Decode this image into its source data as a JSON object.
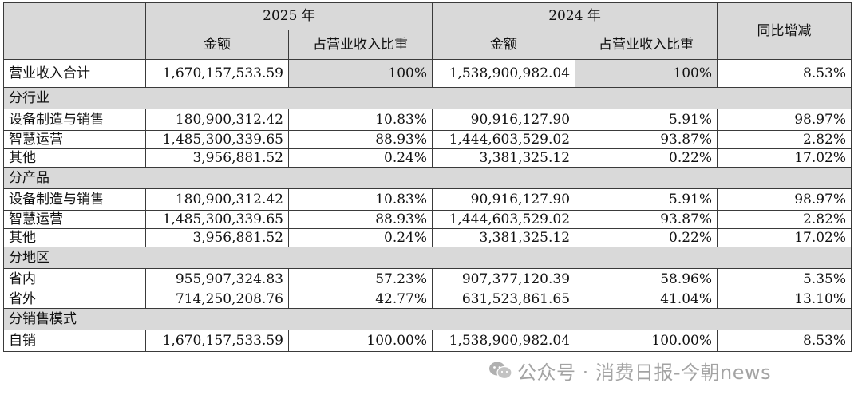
{
  "header": {
    "year_current": "2025 年",
    "year_previous": "2024 年",
    "yoy": "同比增减",
    "amount": "金额",
    "share": "占营业收入比重"
  },
  "total": {
    "label": "营业收入合计",
    "amt_2025": "1,670,157,533.59",
    "pct_2025": "100%",
    "amt_2024": "1,538,900,982.04",
    "pct_2024": "100%",
    "yoy": "8.53%"
  },
  "sections": [
    {
      "title": "分行业",
      "rows": [
        {
          "label": "设备制造与销售",
          "amt_2025": "180,900,312.42",
          "pct_2025": "10.83%",
          "amt_2024": "90,916,127.90",
          "pct_2024": "5.91%",
          "yoy": "98.97%"
        },
        {
          "label": "智慧运营",
          "amt_2025": "1,485,300,339.65",
          "pct_2025": "88.93%",
          "amt_2024": "1,444,603,529.02",
          "pct_2024": "93.87%",
          "yoy": "2.82%"
        },
        {
          "label": "其他",
          "amt_2025": "3,956,881.52",
          "pct_2025": "0.24%",
          "amt_2024": "3,381,325.12",
          "pct_2024": "0.22%",
          "yoy": "17.02%"
        }
      ]
    },
    {
      "title": "分产品",
      "rows": [
        {
          "label": "设备制造与销售",
          "amt_2025": "180,900,312.42",
          "pct_2025": "10.83%",
          "amt_2024": "90,916,127.90",
          "pct_2024": "5.91%",
          "yoy": "98.97%"
        },
        {
          "label": "智慧运营",
          "amt_2025": "1,485,300,339.65",
          "pct_2025": "88.93%",
          "amt_2024": "1,444,603,529.02",
          "pct_2024": "93.87%",
          "yoy": "2.82%"
        },
        {
          "label": "其他",
          "amt_2025": "3,956,881.52",
          "pct_2025": "0.24%",
          "amt_2024": "3,381,325.12",
          "pct_2024": "0.22%",
          "yoy": "17.02%"
        }
      ]
    },
    {
      "title": "分地区",
      "rows": [
        {
          "label": "省内",
          "amt_2025": "955,907,324.83",
          "pct_2025": "57.23%",
          "amt_2024": "907,377,120.39",
          "pct_2024": "58.96%",
          "yoy": "5.35%"
        },
        {
          "label": "省外",
          "amt_2025": "714,250,208.76",
          "pct_2025": "42.77%",
          "amt_2024": "631,523,861.65",
          "pct_2024": "41.04%",
          "yoy": "13.10%"
        }
      ]
    },
    {
      "title": "分销售模式",
      "rows": [
        {
          "label": "自销",
          "amt_2025": "1,670,157,533.59",
          "pct_2025": "100.00%",
          "amt_2024": "1,538,900,982.04",
          "pct_2024": "100.00%",
          "yoy": "8.53%"
        }
      ]
    }
  ],
  "watermark": {
    "text": "公众号 · 消费日报-今朝news",
    "icon": "wechat-icon"
  }
}
